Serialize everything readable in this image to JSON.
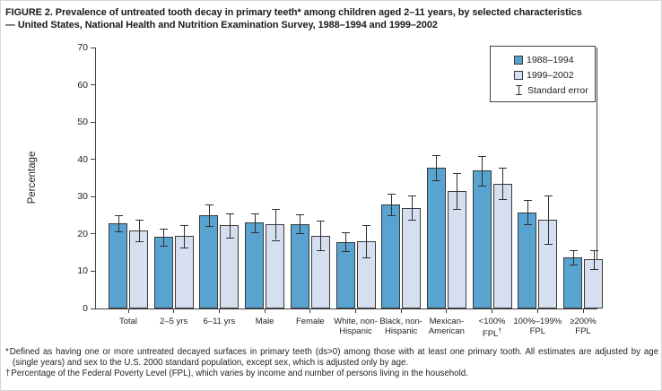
{
  "figure": {
    "title_line1": "FIGURE 2. Prevalence of untreated tooth decay in primary teeth* among children aged 2–11 years, by selected characteristics",
    "title_line2": "— United States, National Health and Nutrition Examination Survey, 1988–1994 and 1999–2002"
  },
  "chart_data": {
    "type": "bar",
    "title": "FIGURE 2. Prevalence of untreated tooth decay in primary teeth among children aged 2–11 years, by selected characteristics — United States, National Health and Nutrition Examination Survey, 1988–1994 and 1999–2002",
    "xlabel": "",
    "ylabel": "Percentage",
    "ylim": [
      0,
      70
    ],
    "yticks": [
      0,
      10,
      20,
      30,
      40,
      50,
      60,
      70
    ],
    "grid": false,
    "legend_position": "top-right",
    "legend": [
      {
        "label": "1988–1994",
        "color": "#58A3CF"
      },
      {
        "label": "1999–2002",
        "color": "#D5DFF0"
      }
    ],
    "legend_note": "Standard error",
    "error_bars": "standard error",
    "categories": [
      "Total",
      "2–5 yrs",
      "6–11 yrs",
      "Male",
      "Female",
      "White, non-Hispanic",
      "Black, non-Hispanic",
      "Mexican-American",
      "<100% FPL†",
      "100%–199% FPL",
      "≥200% FPL"
    ],
    "category_label_lines": [
      [
        "Total"
      ],
      [
        "2–5 yrs"
      ],
      [
        "6–11 yrs"
      ],
      [
        "Male"
      ],
      [
        "Female"
      ],
      [
        "White, non-",
        "Hispanic"
      ],
      [
        "Black, non-",
        "Hispanic"
      ],
      [
        "Mexican-",
        "American"
      ],
      [
        "<100%",
        "FPL†"
      ],
      [
        "100%–199%",
        "FPL"
      ],
      [
        "≥200%",
        "FPL"
      ]
    ],
    "series": [
      {
        "name": "1988–1994",
        "values": [
          22.8,
          19.2,
          25.1,
          23.0,
          22.7,
          17.9,
          27.9,
          37.7,
          37.0,
          25.8,
          13.7
        ],
        "se": [
          2.1,
          2.3,
          2.9,
          2.5,
          2.6,
          2.6,
          3.0,
          3.4,
          4.0,
          3.3,
          2.0
        ]
      },
      {
        "name": "1999–2002",
        "values": [
          21.0,
          19.4,
          22.3,
          22.5,
          19.6,
          18.1,
          27.0,
          31.5,
          33.5,
          23.7,
          13.2
        ],
        "se": [
          2.9,
          3.0,
          3.3,
          4.1,
          3.9,
          4.3,
          3.2,
          4.9,
          4.2,
          6.5,
          2.5
        ]
      }
    ]
  },
  "footnotes": [
    {
      "marker": "*",
      "text": "Defined as having one or more untreated decayed surfaces in primary teeth (ds>0) among those with at least one primary tooth. All estimates are adjusted by age (single years) and sex to the U.S. 2000 standard population, except sex, which is adjusted only by age."
    },
    {
      "marker": "†",
      "text": "Percentage of the Federal Poverty Level (FPL), which varies by income and number of persons living in the household."
    }
  ]
}
